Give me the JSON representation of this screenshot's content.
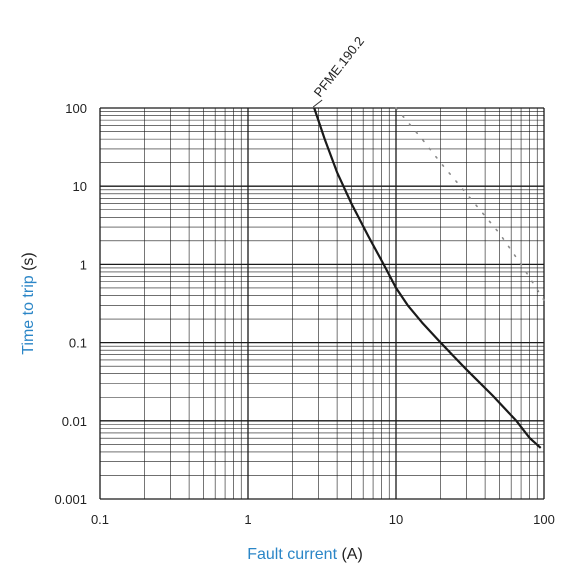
{
  "chart_data": {
    "type": "line",
    "x_scale": "log",
    "y_scale": "log",
    "xlim": [
      0.1,
      100
    ],
    "ylim": [
      0.001,
      100
    ],
    "x_ticks": [
      {
        "value": 0.1,
        "label": "0.1"
      },
      {
        "value": 1,
        "label": "1"
      },
      {
        "value": 10,
        "label": "10"
      },
      {
        "value": 100,
        "label": "100"
      }
    ],
    "y_ticks": [
      {
        "value": 100,
        "label": "100"
      },
      {
        "value": 10,
        "label": "10"
      },
      {
        "value": 1,
        "label": "1"
      },
      {
        "value": 0.1,
        "label": "0.1"
      },
      {
        "value": 0.01,
        "label": "0.01"
      },
      {
        "value": 0.001,
        "label": "0.001"
      }
    ],
    "xlabel": {
      "main": "Fault current",
      "unit": "(A)"
    },
    "ylabel": {
      "main": "Time to trip",
      "unit": "(s)"
    },
    "grid": true,
    "colors": {
      "label_accent": "#2b86c7",
      "curve": "#1a1a1a",
      "dotted": "#8a8a8a",
      "grid": "#1a1a1a"
    },
    "series": [
      {
        "name": "PFME.190.2",
        "style": "solid",
        "x": [
          2.8,
          3.3,
          4,
          5,
          6.5,
          8.5,
          10,
          12,
          15,
          20,
          30,
          45,
          65,
          80,
          95
        ],
        "y": [
          100,
          40,
          15,
          6,
          2.3,
          0.9,
          0.5,
          0.3,
          0.18,
          0.1,
          0.045,
          0.021,
          0.01,
          0.006,
          0.0045
        ]
      },
      {
        "style": "dotted",
        "x": [
          10,
          15,
          20,
          30,
          50,
          70,
          100
        ],
        "y": [
          100,
          40,
          20,
          8,
          2.5,
          1.0,
          0.35
        ]
      }
    ]
  }
}
